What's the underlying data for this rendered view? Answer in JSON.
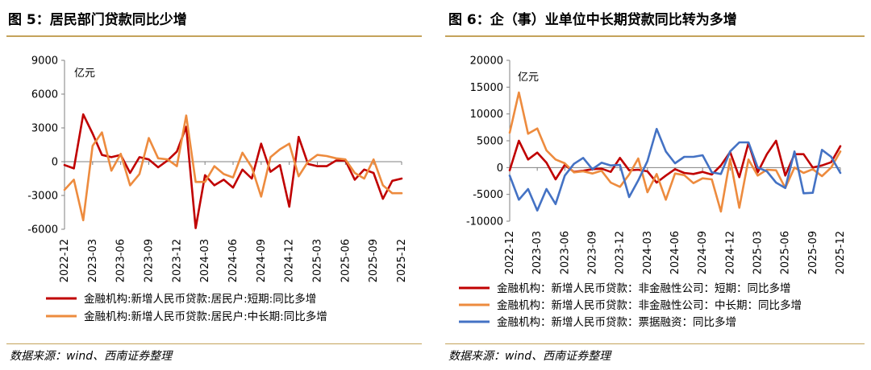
{
  "chart_data": [
    {
      "type": "line",
      "title": "图 5：居民部门贷款同比少增",
      "unit_label": "亿元",
      "ylim": [
        -6000,
        9000
      ],
      "yticks": [
        9000,
        6000,
        3000,
        0,
        -3000,
        -6000
      ],
      "ytick_labels": [
        "9000",
        "6000",
        "3000",
        "0",
        "-3000",
        "-6000"
      ],
      "xtick_labels": [
        "2022-12",
        "2023-03",
        "2023-06",
        "2023-09",
        "2023-12",
        "2024-03",
        "2024-06",
        "2024-09",
        "2024-12",
        "2025-03",
        "2025-06",
        "2025-09",
        "2025-12"
      ],
      "xlabel": "",
      "ylabel": "",
      "legend_position": "bottom",
      "series": [
        {
          "name": "金融机构:新增人民币贷款:居民户:短期:同比多增",
          "color": "#c00000",
          "values": [
            -300,
            -600,
            4200,
            2500,
            600,
            400,
            600,
            -1000,
            400,
            200,
            -500,
            100,
            900,
            3100,
            -5900,
            -1200,
            -2100,
            -1600,
            -2300,
            -700,
            -1500,
            1600,
            -900,
            -300,
            -4000,
            2200,
            -200,
            -400,
            -400,
            100,
            100,
            -1600,
            -700,
            -1000,
            -3300,
            -1700,
            -1500
          ]
        },
        {
          "name": "金融机构:新增人民币贷款:居民户:中长期:同比多增",
          "color": "#ed8b3e",
          "values": [
            -2500,
            -1600,
            -5200,
            1400,
            2600,
            -800,
            700,
            -2100,
            -1100,
            2100,
            300,
            200,
            -400,
            4100,
            -1800,
            -1800,
            -400,
            -1100,
            -1400,
            800,
            -500,
            -3100,
            400,
            1100,
            1600,
            -1300,
            0,
            600,
            500,
            300,
            200,
            -1000,
            -1500,
            200,
            -2100,
            -2800,
            -2800
          ]
        }
      ]
    },
    {
      "type": "line",
      "title": "图 6：企（事）业单位中长期贷款同比转为多增",
      "unit_label": "亿元",
      "ylim": [
        -10000,
        20000
      ],
      "yticks": [
        20000,
        15000,
        10000,
        5000,
        0,
        -5000,
        -10000
      ],
      "ytick_labels": [
        "20000",
        "15000",
        "10000",
        "5000",
        "0",
        "-5000",
        "-10000"
      ],
      "xtick_labels": [
        "2022-12",
        "2023-03",
        "2023-06",
        "2023-09",
        "2023-12",
        "2024-03",
        "2024-06",
        "2024-09",
        "2024-12",
        "2025-03",
        "2025-06",
        "2025-09",
        "2025-12"
      ],
      "xlabel": "",
      "ylabel": "",
      "legend_position": "bottom",
      "series": [
        {
          "name": "金融机构：新增人民币贷款：非金融性公司：短期：同比多增",
          "color": "#c00000",
          "values": [
            -500,
            5000,
            1500,
            2800,
            900,
            -2200,
            500,
            -800,
            -600,
            -300,
            -200,
            -800,
            1800,
            -500,
            -400,
            -700,
            -2800,
            -1500,
            -300,
            -1000,
            -1200,
            -800,
            -1300,
            400,
            2900,
            -1800,
            4600,
            -900,
            2500,
            5000,
            -1500,
            2500,
            2500,
            0,
            400,
            1000,
            4000
          ]
        },
        {
          "name": "金融机构：新增人民币贷款：非金融性公司：中长期：同比多增",
          "color": "#ed8b3e",
          "values": [
            6500,
            14000,
            6300,
            7300,
            3200,
            1500,
            800,
            -900,
            -700,
            -1100,
            -600,
            -2800,
            -3600,
            -1300,
            1700,
            -4600,
            -1200,
            -6000,
            -1100,
            -1400,
            -2900,
            -2000,
            -2200,
            -8200,
            1600,
            -7500,
            1500,
            -1500,
            -400,
            -500,
            -3800,
            0,
            -1000,
            -300,
            -1600,
            0,
            3000
          ]
        },
        {
          "name": "金融机构：新增人民币贷款：票据融资：同比多增",
          "color": "#4472c4",
          "values": [
            -1500,
            -6000,
            -4000,
            -8000,
            -4000,
            -6800,
            -1500,
            700,
            1800,
            -300,
            900,
            400,
            500,
            -5500,
            -2400,
            1200,
            7200,
            3000,
            800,
            2000,
            2000,
            2300,
            -900,
            -1200,
            3000,
            4700,
            4700,
            0,
            -700,
            -2800,
            -3800,
            3000,
            -4800,
            -4700,
            3300,
            2000,
            -1000
          ]
        }
      ]
    }
  ],
  "source_left": "数据来源：wind、西南证券整理",
  "source_right": "数据来源：wind、西南证券整理",
  "colors": {
    "rule": "#c4a35a",
    "axis": "#808080"
  }
}
